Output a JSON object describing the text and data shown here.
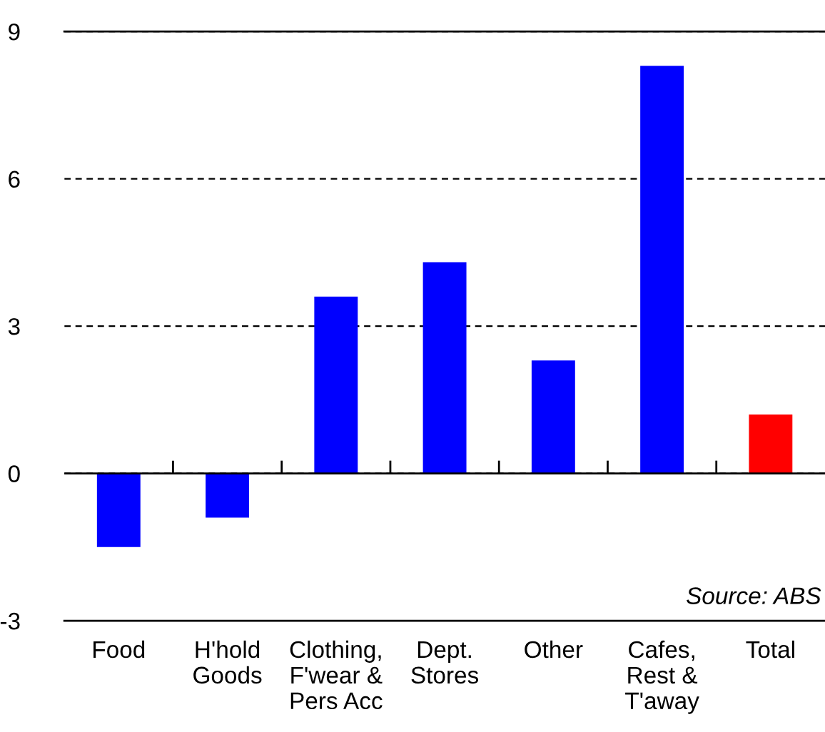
{
  "chart_data": {
    "type": "bar",
    "categories": [
      "Food",
      "H'hold\nGoods",
      "Clothing,\nF'wear &\nPers Acc",
      "Dept.\nStores",
      "Other",
      "Cafes,\nRest &\nT'away",
      "Total"
    ],
    "values": [
      -1.5,
      -0.9,
      3.6,
      4.3,
      2.3,
      8.3,
      1.2
    ],
    "colors": [
      "#0000ff",
      "#0000ff",
      "#0000ff",
      "#0000ff",
      "#0000ff",
      "#0000ff",
      "#ff0000"
    ],
    "ylim": [
      -3,
      9
    ],
    "yticks": [
      -3,
      0,
      3,
      6,
      9
    ],
    "grid": "y",
    "annotations": [
      "Source: ABS"
    ]
  }
}
